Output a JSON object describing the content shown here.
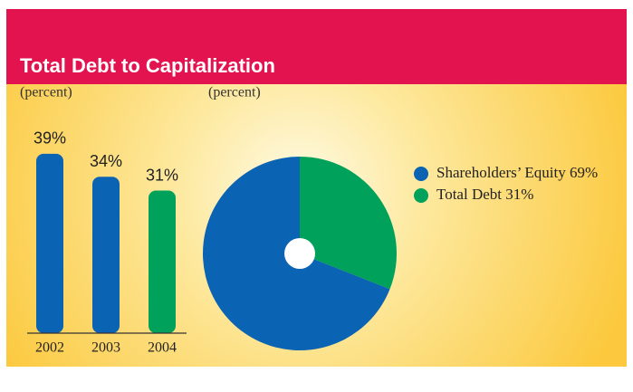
{
  "title": "Total Debt to Capitalization",
  "chart_data": [
    {
      "type": "bar",
      "subtitle": "(percent)",
      "categories": [
        "2002",
        "2003",
        "2004"
      ],
      "values": [
        39,
        34,
        31
      ],
      "value_labels": [
        "39%",
        "34%",
        "31%"
      ],
      "colors": [
        "#0b63b3",
        "#0b63b3",
        "#00a15b"
      ]
    },
    {
      "type": "pie",
      "subtitle": "(percent)",
      "categories": [
        "Shareholders’ Equity",
        "Total Debt"
      ],
      "values": [
        69,
        31
      ],
      "value_labels": [
        "69%",
        "31%"
      ],
      "colors": [
        "#0b63b3",
        "#00a15b"
      ],
      "legend": "right"
    }
  ]
}
